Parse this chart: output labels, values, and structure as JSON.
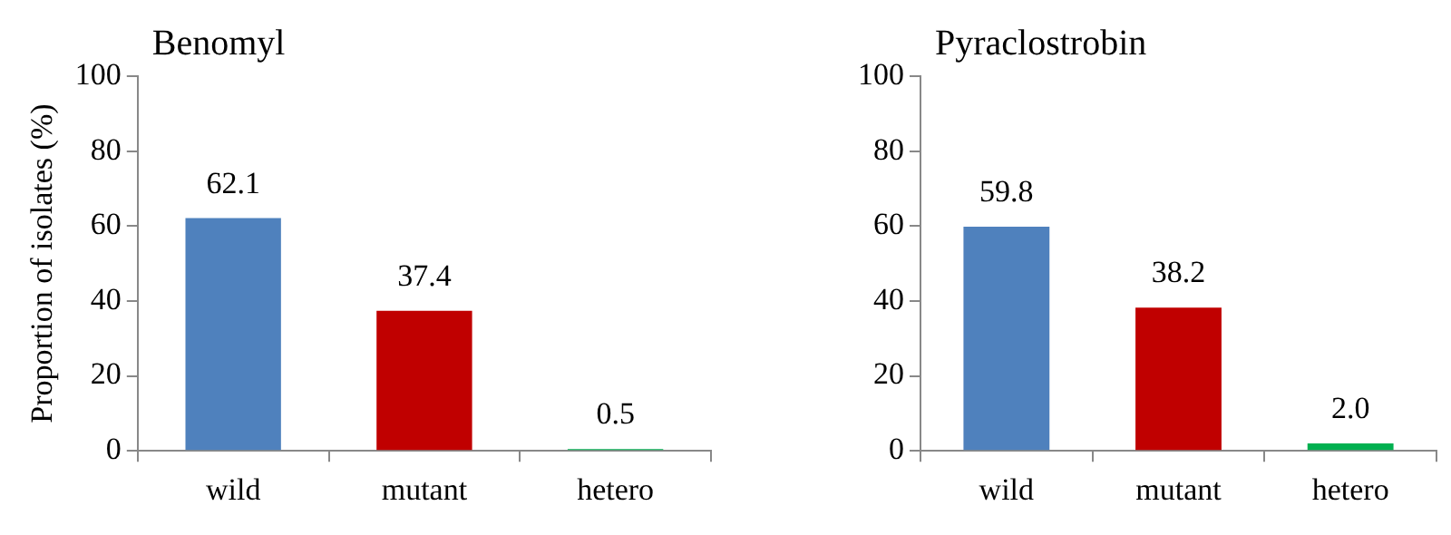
{
  "chart_data": [
    {
      "type": "bar",
      "title": "Benomyl",
      "ylabel": "Proportion of isolates (%)",
      "categories": [
        "wild",
        "mutant",
        "hetero"
      ],
      "values": [
        62.1,
        37.4,
        0.5
      ],
      "value_labels": [
        "62.1",
        "37.4",
        "0.5"
      ],
      "colors": [
        "#4f81bd",
        "#c00000",
        "#00b050"
      ],
      "ylim": [
        0,
        100
      ],
      "yticks": [
        0,
        20,
        40,
        60,
        80,
        100
      ],
      "grid": false,
      "legend": false
    },
    {
      "type": "bar",
      "title": "Pyraclostrobin",
      "categories": [
        "wild",
        "mutant",
        "hetero"
      ],
      "values": [
        59.8,
        38.2,
        2.0
      ],
      "value_labels": [
        "59.8",
        "38.2",
        "2.0"
      ],
      "colors": [
        "#4f81bd",
        "#c00000",
        "#00b050"
      ],
      "ylim": [
        0,
        100
      ],
      "yticks": [
        0,
        20,
        40,
        60,
        80,
        100
      ],
      "grid": false,
      "legend": false
    }
  ]
}
